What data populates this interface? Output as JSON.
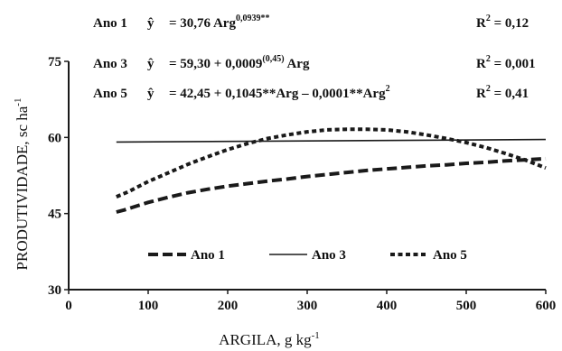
{
  "chart_data": {
    "type": "line",
    "xlabel": "ARGILA, g kg",
    "xlabel_sup": "-1",
    "ylabel": "PRODUTIVIDADE, sc ha",
    "ylabel_sup": "-1",
    "xlim": [
      0,
      600
    ],
    "ylim": [
      30,
      75
    ],
    "xticks": [
      0,
      100,
      200,
      300,
      400,
      500,
      600
    ],
    "yticks": [
      30,
      45,
      60,
      75
    ],
    "grid": false,
    "legend_position": "bottom-left",
    "equations": [
      {
        "label": "Ano 1",
        "yhat": "ŷ",
        "eq": "=  30,76 Arg",
        "sup": "0,0939**",
        "tail": "",
        "r2_label": "R",
        "r2_sup": "2",
        "r2_value": "= 0,12"
      },
      {
        "label": "Ano 3",
        "yhat": "ŷ",
        "eq": "=  59,30 + 0,0009",
        "sup": "(0,45)",
        "tail": " Arg",
        "r2_label": "R",
        "r2_sup": "2",
        "r2_value": "= 0,001"
      },
      {
        "label": "Ano 5",
        "yhat": "ŷ",
        "eq": "= 42,45 + 0,1045**Arg  – 0,0001**Arg",
        "sup": "2",
        "tail": "",
        "r2_label": "R",
        "r2_sup": "2",
        "r2_value": "= 0,41"
      }
    ],
    "series": [
      {
        "name": "Ano 1",
        "style": "dashed",
        "x": [
          60,
          70,
          80,
          100,
          125,
          150,
          175,
          200,
          225,
          250,
          275,
          300,
          325,
          350,
          375,
          400,
          425,
          450,
          475,
          500,
          525,
          550,
          575,
          600
        ],
        "y": [
          45.3,
          45.7,
          46.2,
          47.2,
          48.2,
          49.1,
          49.8,
          50.4,
          50.9,
          51.4,
          51.8,
          52.3,
          52.7,
          53.1,
          53.5,
          53.8,
          54.1,
          54.4,
          54.6,
          54.9,
          55.1,
          55.4,
          55.6,
          55.8
        ]
      },
      {
        "name": "Ano 3",
        "style": "solid",
        "x": [
          60,
          600
        ],
        "y": [
          59.1,
          59.6
        ]
      },
      {
        "name": "Ano 5",
        "style": "dotted",
        "x": [
          60,
          75,
          100,
          125,
          150,
          175,
          200,
          225,
          250,
          275,
          300,
          325,
          350,
          375,
          400,
          425,
          450,
          475,
          500,
          525,
          550,
          575,
          600
        ],
        "y": [
          48.3,
          49.3,
          51.3,
          53.0,
          54.7,
          56.2,
          57.6,
          58.8,
          59.8,
          60.5,
          61.1,
          61.5,
          61.6,
          61.6,
          61.5,
          61.1,
          60.5,
          59.8,
          59.0,
          58.0,
          56.8,
          55.5,
          54.0
        ]
      }
    ],
    "colors": {
      "line": "#1a1a1a",
      "text": "#111111"
    }
  }
}
